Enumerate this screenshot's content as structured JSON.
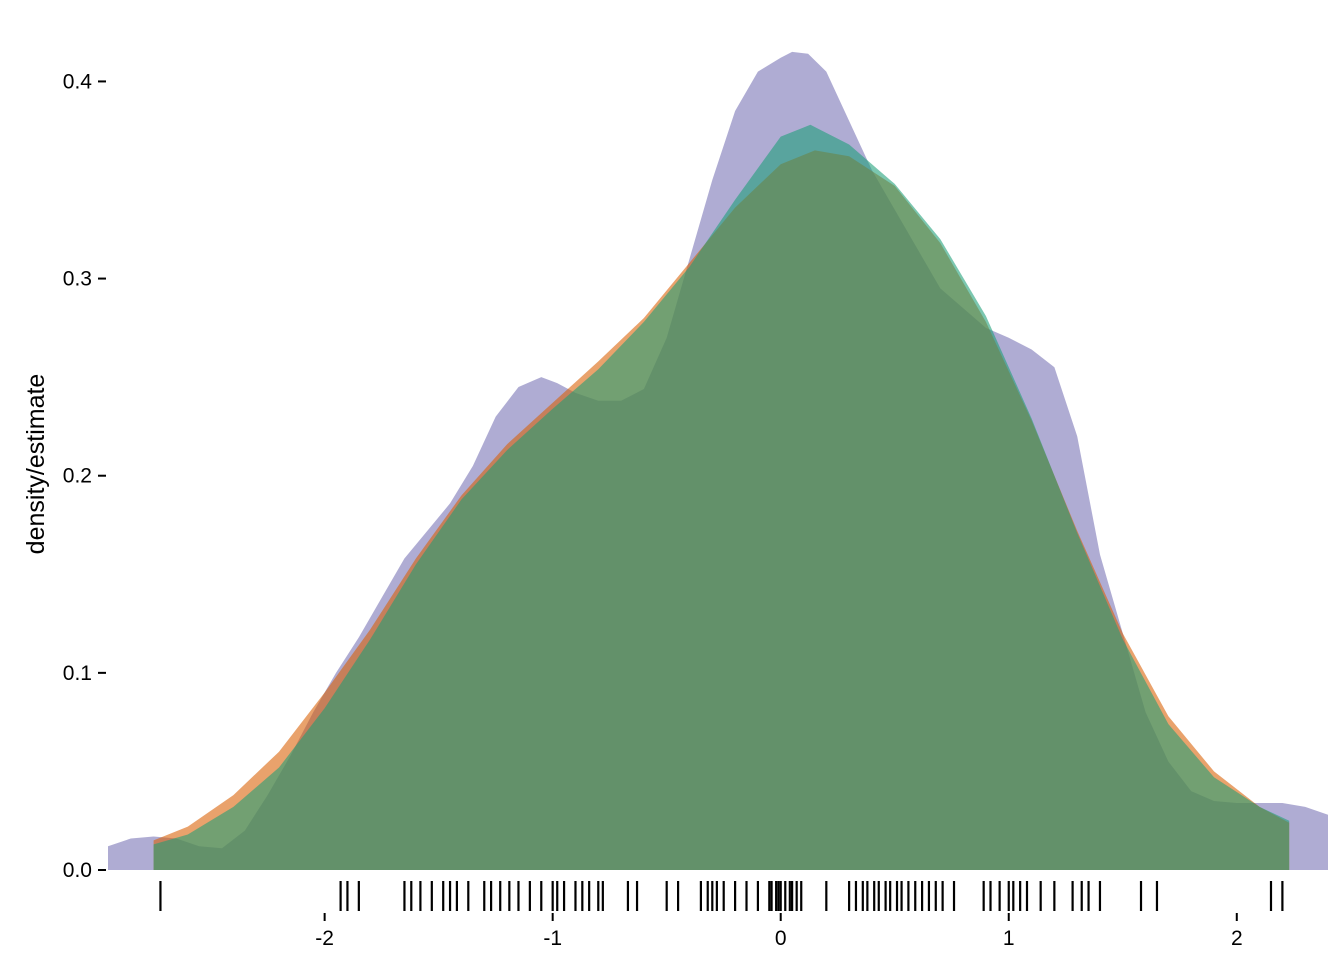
{
  "chart_data": {
    "type": "area",
    "title": "",
    "xlabel": "",
    "ylabel": "density/estimate",
    "xlim": [
      -2.95,
      2.4
    ],
    "ylim": [
      0,
      0.42
    ],
    "xticks": [
      -2,
      -1,
      0,
      1,
      2
    ],
    "yticks": [
      0.0,
      0.1,
      0.2,
      0.3,
      0.4
    ],
    "xtick_labels": [
      "-2",
      "-1",
      "0",
      "1",
      "2"
    ],
    "ytick_labels": [
      "0.0",
      "0.1",
      "0.2",
      "0.3",
      "0.4"
    ],
    "grid": false,
    "legend": "none",
    "series": [
      {
        "color": "#7570b3",
        "x": [
          -2.95,
          -2.85,
          -2.75,
          -2.65,
          -2.55,
          -2.45,
          -2.35,
          -2.25,
          -2.15,
          -2.05,
          -1.95,
          -1.85,
          -1.75,
          -1.65,
          -1.55,
          -1.45,
          -1.35,
          -1.25,
          -1.15,
          -1.05,
          -0.98,
          -0.9,
          -0.8,
          -0.7,
          -0.6,
          -0.5,
          -0.4,
          -0.3,
          -0.2,
          -0.1,
          0.0,
          0.05,
          0.12,
          0.2,
          0.3,
          0.4,
          0.5,
          0.6,
          0.7,
          0.8,
          0.9,
          1.0,
          1.1,
          1.2,
          1.3,
          1.4,
          1.5,
          1.6,
          1.7,
          1.8,
          1.9,
          2.0,
          2.1,
          2.2,
          2.3,
          2.4
        ],
        "y": [
          0.012,
          0.016,
          0.017,
          0.016,
          0.012,
          0.011,
          0.02,
          0.038,
          0.058,
          0.08,
          0.1,
          0.118,
          0.138,
          0.158,
          0.172,
          0.186,
          0.205,
          0.23,
          0.245,
          0.25,
          0.247,
          0.242,
          0.238,
          0.238,
          0.244,
          0.27,
          0.31,
          0.35,
          0.385,
          0.405,
          0.412,
          0.415,
          0.414,
          0.405,
          0.38,
          0.355,
          0.335,
          0.315,
          0.295,
          0.285,
          0.275,
          0.27,
          0.264,
          0.255,
          0.22,
          0.16,
          0.12,
          0.08,
          0.055,
          0.04,
          0.035,
          0.034,
          0.034,
          0.034,
          0.032,
          0.028
        ]
      },
      {
        "color": "#d95f02",
        "x": [
          -2.75,
          -2.6,
          -2.4,
          -2.2,
          -2.0,
          -1.8,
          -1.6,
          -1.4,
          -1.2,
          -1.0,
          -0.8,
          -0.6,
          -0.4,
          -0.2,
          0.0,
          0.15,
          0.3,
          0.5,
          0.7,
          0.9,
          1.1,
          1.3,
          1.5,
          1.7,
          1.9,
          2.1,
          2.23
        ],
        "y": [
          0.015,
          0.022,
          0.038,
          0.06,
          0.09,
          0.122,
          0.158,
          0.19,
          0.216,
          0.237,
          0.258,
          0.28,
          0.308,
          0.336,
          0.358,
          0.365,
          0.362,
          0.347,
          0.318,
          0.278,
          0.228,
          0.172,
          0.12,
          0.078,
          0.05,
          0.032,
          0.024
        ]
      },
      {
        "color": "#1b9e77",
        "x": [
          -2.75,
          -2.6,
          -2.4,
          -2.2,
          -2.0,
          -1.8,
          -1.6,
          -1.4,
          -1.2,
          -1.0,
          -0.8,
          -0.6,
          -0.4,
          -0.2,
          0.0,
          0.13,
          0.3,
          0.5,
          0.7,
          0.9,
          1.1,
          1.3,
          1.5,
          1.7,
          1.9,
          2.1,
          2.23
        ],
        "y": [
          0.013,
          0.018,
          0.032,
          0.052,
          0.082,
          0.117,
          0.155,
          0.188,
          0.213,
          0.234,
          0.254,
          0.278,
          0.306,
          0.34,
          0.372,
          0.378,
          0.368,
          0.348,
          0.32,
          0.281,
          0.229,
          0.171,
          0.117,
          0.074,
          0.047,
          0.032,
          0.025
        ]
      }
    ],
    "rug": [
      -2.72,
      -1.93,
      -1.9,
      -1.85,
      -1.65,
      -1.62,
      -1.58,
      -1.53,
      -1.48,
      -1.45,
      -1.42,
      -1.37,
      -1.3,
      -1.27,
      -1.23,
      -1.19,
      -1.15,
      -1.1,
      -1.05,
      -1.0,
      -0.98,
      -0.95,
      -0.9,
      -0.87,
      -0.84,
      -0.8,
      -0.78,
      -0.67,
      -0.63,
      -0.5,
      -0.45,
      -0.35,
      -0.32,
      -0.3,
      -0.28,
      -0.25,
      -0.2,
      -0.15,
      -0.1,
      -0.05,
      -0.04,
      -0.02,
      -0.01,
      0.0,
      0.02,
      0.04,
      0.05,
      0.07,
      0.09,
      0.2,
      0.3,
      0.33,
      0.36,
      0.38,
      0.41,
      0.43,
      0.46,
      0.48,
      0.51,
      0.53,
      0.56,
      0.59,
      0.62,
      0.65,
      0.68,
      0.71,
      0.76,
      0.89,
      0.92,
      0.96,
      1.0,
      1.02,
      1.05,
      1.08,
      1.14,
      1.2,
      1.28,
      1.32,
      1.35,
      1.4,
      1.58,
      1.65,
      2.15,
      2.2
    ]
  }
}
